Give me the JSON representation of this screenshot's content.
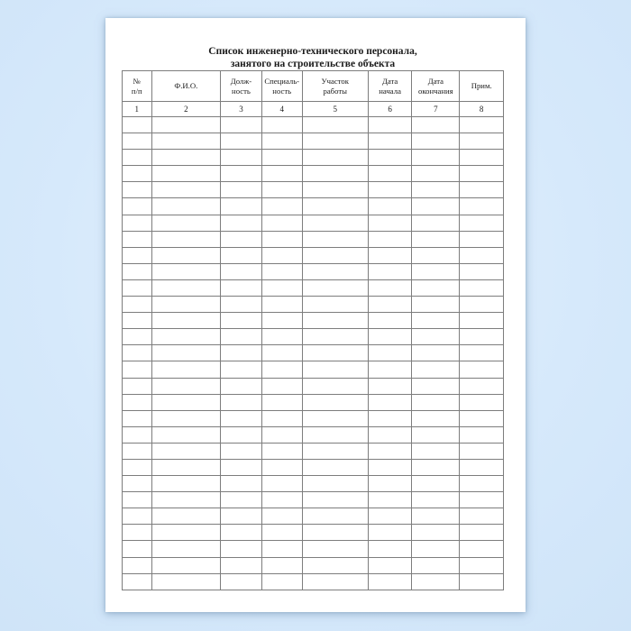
{
  "document": {
    "title_line1": "Список инженерно-технического персонала,",
    "title_line2": "занятого на строительстве объекта"
  },
  "table": {
    "columns": [
      {
        "header_line1": "№",
        "header_line2": "п/п",
        "number": "1"
      },
      {
        "header_line1": "Ф.И.О.",
        "header_line2": "",
        "number": "2"
      },
      {
        "header_line1": "Долж-",
        "header_line2": "ность",
        "number": "3"
      },
      {
        "header_line1": "Специаль-",
        "header_line2": "ность",
        "number": "4"
      },
      {
        "header_line1": "Участок",
        "header_line2": "работы",
        "number": "5"
      },
      {
        "header_line1": "Дата",
        "header_line2": "начала",
        "number": "6"
      },
      {
        "header_line1": "Дата",
        "header_line2": "окончания",
        "number": "7"
      },
      {
        "header_line1": "Прим.",
        "header_line2": "",
        "number": "8"
      }
    ],
    "empty_row_count": 29,
    "empty_cell_value": ""
  },
  "colors": {
    "background_blue": "#d6e9fb",
    "page_white": "#ffffff",
    "table_border_gray": "#7d7d7d",
    "text_black": "#1a1a1a"
  }
}
